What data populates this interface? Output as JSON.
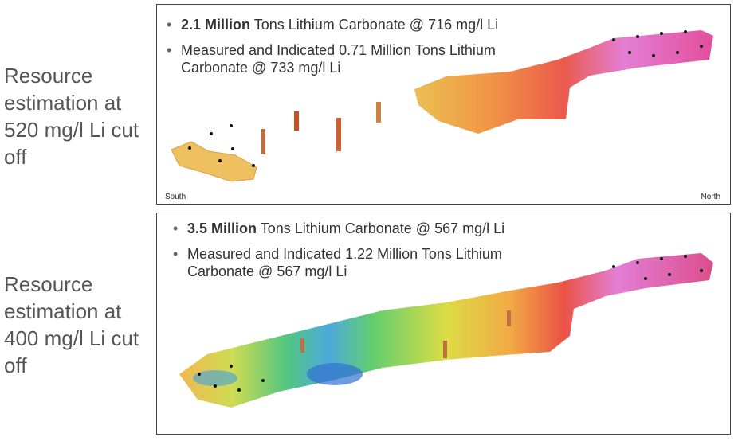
{
  "panels": [
    {
      "side_label": "Resource estimation at 520 mg/l Li cut off",
      "bullets": [
        {
          "bold": "2.1 Million",
          "text": "Tons Lithium Carbonate @ 716 mg/l Li"
        },
        {
          "text": "Measured and Indicated 0.71 Million Tons Lithium Carbonate @ 733 mg/l Li"
        }
      ],
      "south_label": "South",
      "north_label": "North"
    },
    {
      "side_label": "Resource estimation at 400 mg/l Li cut off",
      "bullets": [
        {
          "bold": "3.5 Million",
          "text": "Tons Lithium Carbonate @ 567 mg/l Li"
        },
        {
          "text": "Measured and Indicated 1.22 Million Tons Lithium Carbonate @ 567 mg/l Li"
        }
      ]
    }
  ]
}
